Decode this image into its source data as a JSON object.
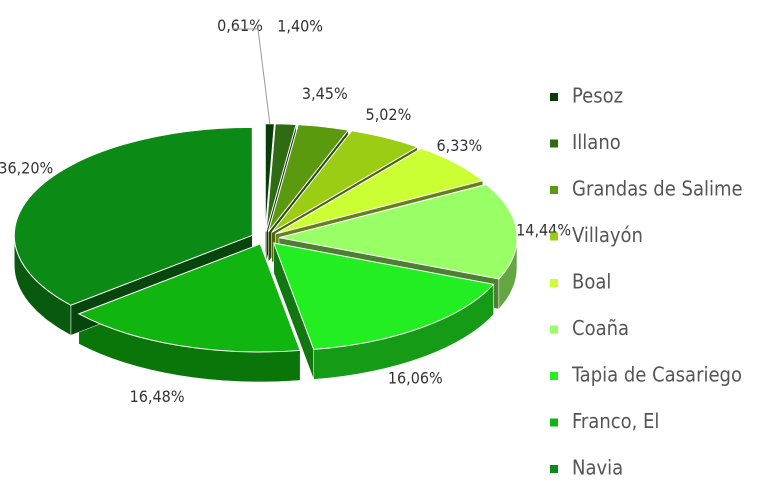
{
  "chart_data": {
    "type": "pie",
    "categories": [
      "Pesoz",
      "Illano",
      "Grandas de Salime",
      "Villayón",
      "Boal",
      "Coaña",
      "Tapia de Casariego",
      "Franco, El",
      "Navia"
    ],
    "values": [
      0.61,
      1.4,
      3.45,
      5.02,
      6.33,
      14.44,
      16.06,
      16.48,
      36.2
    ],
    "value_labels": [
      "0,61%",
      "1,40%",
      "3,45%",
      "5,02%",
      "6,33%",
      "14,44%",
      "16,06%",
      "16,48%",
      "36,20%"
    ],
    "colors": [
      "#0b3d0b",
      "#2f6b12",
      "#5b9a0f",
      "#9acd14",
      "#ccff33",
      "#99ff66",
      "#22ee22",
      "#10b510",
      "#0b8a16"
    ],
    "legend": "right"
  }
}
